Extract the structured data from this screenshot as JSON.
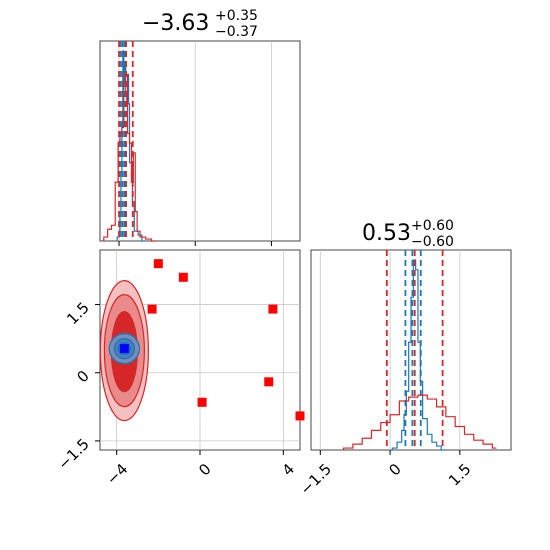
{
  "chart_data": {
    "type": "corner",
    "panels": [
      {
        "id": "hist-param-1",
        "type": "histogram",
        "title": {
          "value": "−3.63",
          "upper": "+0.35",
          "lower": "−0.37"
        },
        "xlim": [
          -5.0,
          5.5
        ],
        "xticks": [
          -4,
          0,
          4
        ],
        "series": [
          {
            "color": "#1f77b4",
            "quantiles": [
              -3.9,
              -3.8,
              -3.7
            ],
            "x": [
              -4.1,
              -4.0,
              -3.95,
              -3.9,
              -3.85,
              -3.8,
              -3.75,
              -3.7,
              -3.65,
              -3.6,
              -3.55,
              -3.5,
              -3.45,
              -3.3,
              -3.2,
              -3.0,
              -2.8
            ],
            "y": [
              0.02,
              0.05,
              0.15,
              0.35,
              0.6,
              0.97,
              0.8,
              0.9,
              0.75,
              0.7,
              0.85,
              0.7,
              0.4,
              0.2,
              0.05,
              0.03,
              0.0
            ]
          },
          {
            "color": "#d62728",
            "quantiles": [
              -4.0,
              -3.63,
              -3.28
            ],
            "x": [
              -4.8,
              -4.6,
              -4.4,
              -4.2,
              -4.05,
              -3.95,
              -3.85,
              -3.75,
              -3.65,
              -3.55,
              -3.45,
              -3.35,
              -3.25,
              -3.15,
              -3.05,
              -2.9,
              -2.6,
              -2.3
            ],
            "y": [
              0.02,
              0.06,
              0.08,
              0.3,
              0.5,
              0.55,
              0.58,
              0.85,
              0.85,
              0.55,
              0.5,
              0.3,
              0.45,
              0.15,
              0.05,
              0.02,
              0.01,
              0.0
            ]
          }
        ]
      },
      {
        "id": "hist-param-2",
        "type": "histogram",
        "title": {
          "value": "0.53",
          "upper": "+0.60",
          "lower": "−0.60"
        },
        "xlim": [
          -1.7,
          2.6
        ],
        "xticks": [
          -1.5,
          0.0,
          1.5
        ],
        "series": [
          {
            "color": "#1f77b4",
            "quantiles": [
              0.33,
              0.48,
              0.66
            ],
            "x": [
              0.05,
              0.15,
              0.25,
              0.3,
              0.35,
              0.4,
              0.45,
              0.5,
              0.55,
              0.6,
              0.65,
              0.7,
              0.8,
              0.9,
              1.0,
              1.1
            ],
            "y": [
              0.01,
              0.04,
              0.1,
              0.18,
              0.3,
              0.55,
              0.78,
              0.97,
              0.92,
              0.55,
              0.35,
              0.16,
              0.08,
              0.04,
              0.02,
              0.0
            ]
          },
          {
            "color": "#d62728",
            "quantiles": [
              -0.07,
              0.53,
              1.13
            ],
            "x": [
              -1.0,
              -0.8,
              -0.6,
              -0.4,
              -0.2,
              0.0,
              0.2,
              0.4,
              0.6,
              0.8,
              1.0,
              1.2,
              1.4,
              1.6,
              1.8,
              2.0,
              2.2
            ],
            "y": [
              0.01,
              0.03,
              0.06,
              0.1,
              0.14,
              0.18,
              0.25,
              0.27,
              0.28,
              0.26,
              0.22,
              0.17,
              0.12,
              0.08,
              0.05,
              0.03,
              0.01
            ]
          }
        ]
      },
      {
        "id": "scatter-param-1-vs-2",
        "type": "scatter",
        "xlim": [
          -4.8,
          4.8
        ],
        "ylim": [
          -1.7,
          2.7
        ],
        "xticks": [
          -4,
          0,
          4
        ],
        "yticks": [
          -1.5,
          0.0,
          1.5
        ],
        "red_points": [
          [
            -2.0,
            2.4
          ],
          [
            -0.8,
            2.1
          ],
          [
            -2.3,
            1.4
          ],
          [
            3.5,
            1.4
          ],
          [
            0.1,
            -0.65
          ],
          [
            3.3,
            -0.2
          ],
          [
            4.8,
            -0.95
          ]
        ],
        "blue_point": [
          -3.63,
          0.53
        ]
      }
    ]
  }
}
